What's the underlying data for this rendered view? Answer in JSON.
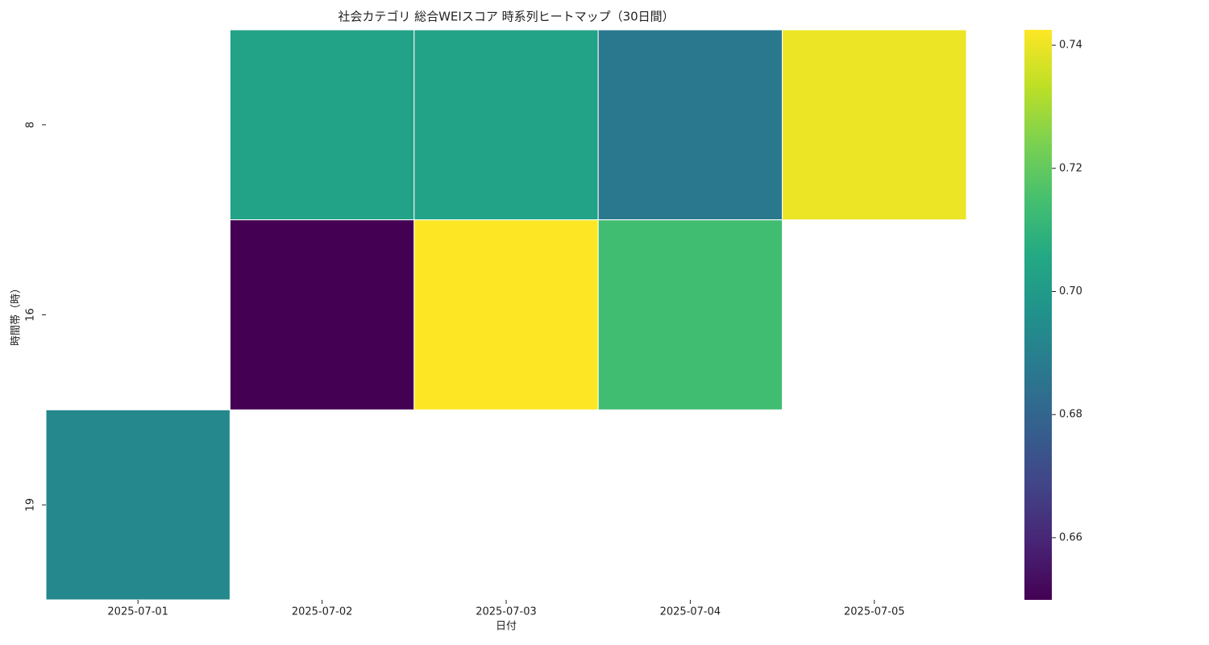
{
  "chart_data": {
    "type": "heatmap",
    "title": "社会カテゴリ 総合WEIスコア 時系列ヒートマップ（30日間）",
    "x_label": "日付",
    "y_label": "時間帯（時）",
    "x": [
      "2025-07-01",
      "2025-07-02",
      "2025-07-03",
      "2025-07-04",
      "2025-07-05"
    ],
    "y": [
      "8",
      "16",
      "19"
    ],
    "values": [
      [
        null,
        0.703,
        0.703,
        0.687,
        0.74
      ],
      [
        null,
        0.65,
        0.7425,
        0.714,
        null
      ],
      [
        0.693,
        null,
        null,
        null,
        null
      ]
    ],
    "colormap": "viridis",
    "clim": [
      0.6499,
      0.7425
    ],
    "cticks": [
      0.66,
      0.68,
      {
        "value": 0.7,
        "label": "0.70"
      },
      0.72,
      0.74
    ]
  }
}
